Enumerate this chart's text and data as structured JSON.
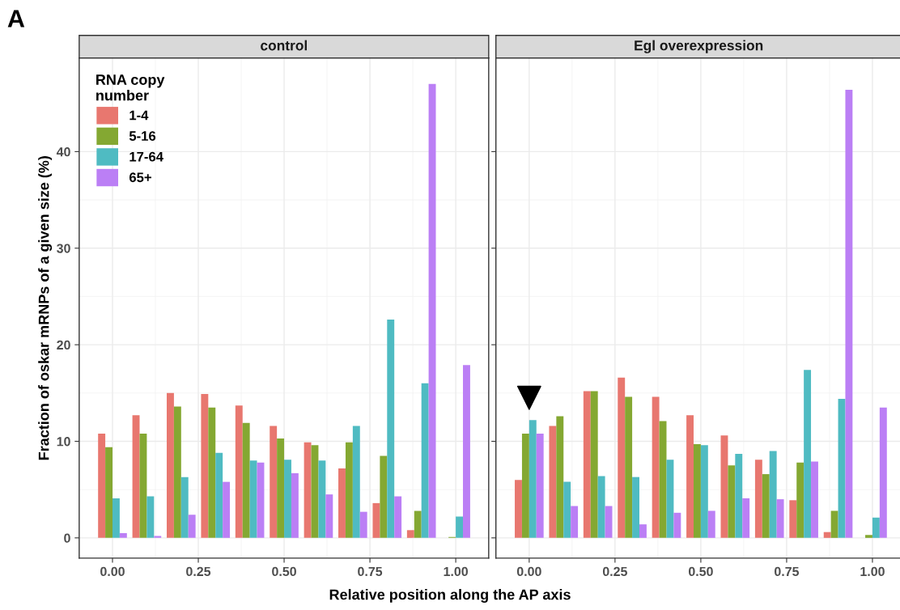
{
  "chart_data": [
    {
      "type": "bar",
      "title": "control",
      "xlabel": "Relative position along the AP axis",
      "ylabel": "Fraction of oskar mRNPs of a given size (%)",
      "legend_title": "RNA copy\nnumber",
      "legend": "top left",
      "annotations": [
        "A"
      ],
      "x": [
        0,
        0.1,
        0.2,
        0.3,
        0.4,
        0.5,
        0.6,
        0.7,
        0.8,
        0.9,
        1.0
      ],
      "series": [
        {
          "name": "1-4",
          "color": "#e8776f",
          "values": [
            10.8,
            12.7,
            15.0,
            14.9,
            13.7,
            11.6,
            9.9,
            7.2,
            3.6,
            0.8,
            0
          ]
        },
        {
          "name": "5-16",
          "color": "#84a832",
          "values": [
            9.4,
            10.8,
            13.6,
            13.5,
            11.9,
            10.3,
            9.6,
            9.9,
            8.5,
            2.8,
            0.1
          ]
        },
        {
          "name": "17-64",
          "color": "#4fbbc2",
          "values": [
            4.1,
            4.3,
            6.3,
            8.8,
            8.0,
            8.1,
            8.0,
            11.6,
            22.6,
            16.0,
            2.2
          ]
        },
        {
          "name": "65+",
          "color": "#bb7ff5",
          "values": [
            0.5,
            0.2,
            2.4,
            5.8,
            7.8,
            6.7,
            4.5,
            2.7,
            4.3,
            47.0,
            17.9
          ]
        }
      ],
      "xlim": [
        -0.097,
        1.096
      ],
      "ylim": [
        -2.1,
        49.7
      ],
      "xticks": [
        {
          "value": 0,
          "label": "0.00"
        },
        {
          "value": 0.25,
          "label": "0.25"
        },
        {
          "value": 0.5,
          "label": "0.50"
        },
        {
          "value": 0.75,
          "label": "0.75"
        },
        {
          "value": 1,
          "label": "1.00"
        }
      ],
      "yticks": [
        0,
        10,
        20,
        30,
        40
      ],
      "grid": true
    },
    {
      "type": "bar",
      "title": "Egl overexpression",
      "x": [
        0,
        0.1,
        0.2,
        0.3,
        0.4,
        0.5,
        0.6,
        0.7,
        0.8,
        0.9,
        1.0
      ],
      "series": [
        {
          "color": "#e8776f",
          "values": [
            6.0,
            11.6,
            15.2,
            16.6,
            14.6,
            12.7,
            10.6,
            8.1,
            3.9,
            0.6,
            0
          ]
        },
        {
          "color": "#84a832",
          "values": [
            10.8,
            12.6,
            15.2,
            14.6,
            12.1,
            9.7,
            7.5,
            6.6,
            7.8,
            2.8,
            0.3
          ]
        },
        {
          "color": "#4fbbc2",
          "values": [
            12.2,
            5.8,
            6.4,
            6.3,
            8.1,
            9.6,
            8.7,
            9.0,
            17.4,
            14.4,
            2.1
          ]
        },
        {
          "color": "#bb7ff5",
          "values": [
            10.8,
            3.3,
            3.3,
            1.4,
            2.6,
            2.8,
            4.1,
            4.0,
            7.9,
            46.4,
            13.5
          ]
        }
      ],
      "xlim": [
        -0.097,
        1.084
      ],
      "ylim": [
        -2.1,
        49.7
      ],
      "xticks": [
        {
          "value": 0,
          "label": "0.00"
        },
        {
          "value": 0.25,
          "label": "0.25"
        },
        {
          "value": 0.5,
          "label": "0.50"
        },
        {
          "value": 0.75,
          "label": "0.75"
        },
        {
          "value": 1,
          "label": "1.00"
        }
      ],
      "yticks": [
        0,
        10,
        20,
        30,
        40
      ],
      "grid": true,
      "tick_labels": "x"
    }
  ]
}
